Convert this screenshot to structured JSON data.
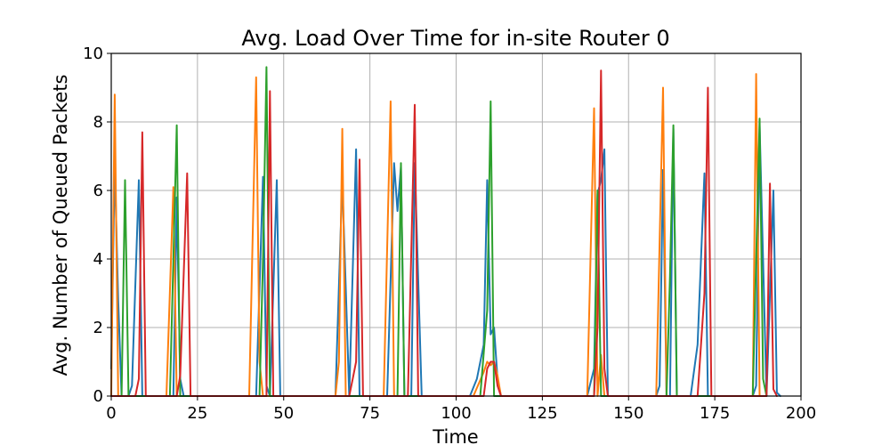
{
  "chart_data": {
    "type": "line",
    "title": "Avg. Load Over Time for in-site Router 0",
    "xlabel": "Time",
    "ylabel": "Avg. Number of Queued Packets",
    "xlim": [
      0,
      200
    ],
    "ylim": [
      0,
      10
    ],
    "xticks": [
      "0",
      "25",
      "50",
      "75",
      "100",
      "125",
      "150",
      "175",
      "200"
    ],
    "yticks": [
      "0",
      "2",
      "4",
      "6",
      "8",
      "10"
    ],
    "grid": true,
    "series": [
      {
        "color": "#1f77b4",
        "points": [
          [
            0,
            0.8
          ],
          [
            1,
            6.8
          ],
          [
            2,
            2.8
          ],
          [
            3,
            0
          ],
          [
            5,
            0
          ],
          [
            6,
            0.3
          ],
          [
            8,
            6.3
          ],
          [
            9,
            0
          ],
          [
            18,
            0
          ],
          [
            19,
            5.8
          ],
          [
            20,
            0.5
          ],
          [
            21,
            0
          ],
          [
            40,
            0
          ],
          [
            42,
            0
          ],
          [
            44,
            6.4
          ],
          [
            45,
            0.3
          ],
          [
            46,
            0
          ],
          [
            48,
            6.3
          ],
          [
            49,
            0
          ],
          [
            65,
            0
          ],
          [
            67,
            6.3
          ],
          [
            69,
            0
          ],
          [
            71,
            7.2
          ],
          [
            72,
            0
          ],
          [
            80,
            0
          ],
          [
            82,
            6.8
          ],
          [
            83,
            5.4
          ],
          [
            84,
            6.7
          ],
          [
            85,
            0
          ],
          [
            87,
            0
          ],
          [
            88,
            6.8
          ],
          [
            90,
            0
          ],
          [
            104,
            0
          ],
          [
            106,
            0.5
          ],
          [
            108,
            1.5
          ],
          [
            109,
            6.3
          ],
          [
            110,
            1.8
          ],
          [
            111,
            2.0
          ],
          [
            112,
            0.5
          ],
          [
            113,
            0
          ],
          [
            138,
            0
          ],
          [
            140,
            0.8
          ],
          [
            141,
            5.9
          ],
          [
            142,
            6.3
          ],
          [
            143,
            7.2
          ],
          [
            144,
            0
          ],
          [
            158,
            0
          ],
          [
            159,
            0.3
          ],
          [
            160,
            6.6
          ],
          [
            161,
            0
          ],
          [
            162,
            0
          ],
          [
            163,
            7.8
          ],
          [
            164,
            0
          ],
          [
            168,
            0
          ],
          [
            170,
            1.5
          ],
          [
            172,
            6.5
          ],
          [
            173,
            0
          ],
          [
            186,
            0
          ],
          [
            187,
            0.3
          ],
          [
            188,
            7.9
          ],
          [
            190,
            0
          ],
          [
            192,
            6.0
          ],
          [
            193,
            0.1
          ],
          [
            194,
            0
          ]
        ]
      },
      {
        "color": "#ff7f0e",
        "points": [
          [
            0,
            0
          ],
          [
            1,
            8.8
          ],
          [
            2,
            0
          ],
          [
            5,
            0
          ],
          [
            16,
            0
          ],
          [
            18,
            6.1
          ],
          [
            19,
            0
          ],
          [
            40,
            0
          ],
          [
            42,
            9.3
          ],
          [
            43,
            1.0
          ],
          [
            44,
            0
          ],
          [
            65,
            0
          ],
          [
            66,
            1.0
          ],
          [
            67,
            7.8
          ],
          [
            68,
            0
          ],
          [
            79,
            0
          ],
          [
            81,
            8.6
          ],
          [
            82,
            0
          ],
          [
            105,
            0
          ],
          [
            108,
            0.7
          ],
          [
            109,
            1.0
          ],
          [
            110,
            0.9
          ],
          [
            111,
            1.0
          ],
          [
            112,
            0.6
          ],
          [
            113,
            0
          ],
          [
            138,
            0
          ],
          [
            140,
            8.4
          ],
          [
            141,
            0
          ],
          [
            142,
            1.2
          ],
          [
            143,
            0
          ],
          [
            158,
            0
          ],
          [
            160,
            9.0
          ],
          [
            161,
            0
          ],
          [
            186,
            0
          ],
          [
            187,
            9.4
          ],
          [
            188,
            0
          ]
        ]
      },
      {
        "color": "#2ca02c",
        "points": [
          [
            0,
            0
          ],
          [
            3,
            0
          ],
          [
            4,
            6.3
          ],
          [
            5,
            0
          ],
          [
            17,
            0
          ],
          [
            19,
            7.9
          ],
          [
            20,
            0
          ],
          [
            43,
            0
          ],
          [
            44,
            4.0
          ],
          [
            45,
            9.6
          ],
          [
            46,
            0
          ],
          [
            83,
            0
          ],
          [
            84,
            6.8
          ],
          [
            85,
            0
          ],
          [
            107,
            0
          ],
          [
            109,
            2.5
          ],
          [
            110,
            8.6
          ],
          [
            111,
            0
          ],
          [
            140,
            0
          ],
          [
            141,
            6.0
          ],
          [
            142,
            0
          ],
          [
            161,
            0
          ],
          [
            162,
            3.5
          ],
          [
            163,
            7.9
          ],
          [
            164,
            0
          ],
          [
            186,
            0
          ],
          [
            188,
            8.1
          ],
          [
            189,
            0.5
          ],
          [
            190,
            0
          ]
        ]
      },
      {
        "color": "#d62728",
        "points": [
          [
            0,
            0
          ],
          [
            7,
            0
          ],
          [
            8,
            0.5
          ],
          [
            9,
            7.7
          ],
          [
            10,
            0
          ],
          [
            19,
            0
          ],
          [
            20,
            0.6
          ],
          [
            22,
            6.5
          ],
          [
            23,
            0
          ],
          [
            45,
            0
          ],
          [
            46,
            8.9
          ],
          [
            47,
            0
          ],
          [
            69,
            0
          ],
          [
            70,
            0.5
          ],
          [
            71,
            1.0
          ],
          [
            72,
            6.9
          ],
          [
            73,
            0
          ],
          [
            86,
            0
          ],
          [
            88,
            8.5
          ],
          [
            89,
            0
          ],
          [
            108,
            0
          ],
          [
            109,
            0.8
          ],
          [
            110,
            1.0
          ],
          [
            111,
            1.0
          ],
          [
            112,
            0.3
          ],
          [
            113,
            0
          ],
          [
            140,
            0
          ],
          [
            141,
            2.0
          ],
          [
            142,
            9.5
          ],
          [
            143,
            0.8
          ],
          [
            144,
            0
          ],
          [
            170,
            0
          ],
          [
            172,
            3.0
          ],
          [
            173,
            9.0
          ],
          [
            174,
            0
          ],
          [
            190,
            0
          ],
          [
            191,
            6.2
          ],
          [
            192,
            0.2
          ],
          [
            193,
            0
          ]
        ]
      }
    ]
  }
}
